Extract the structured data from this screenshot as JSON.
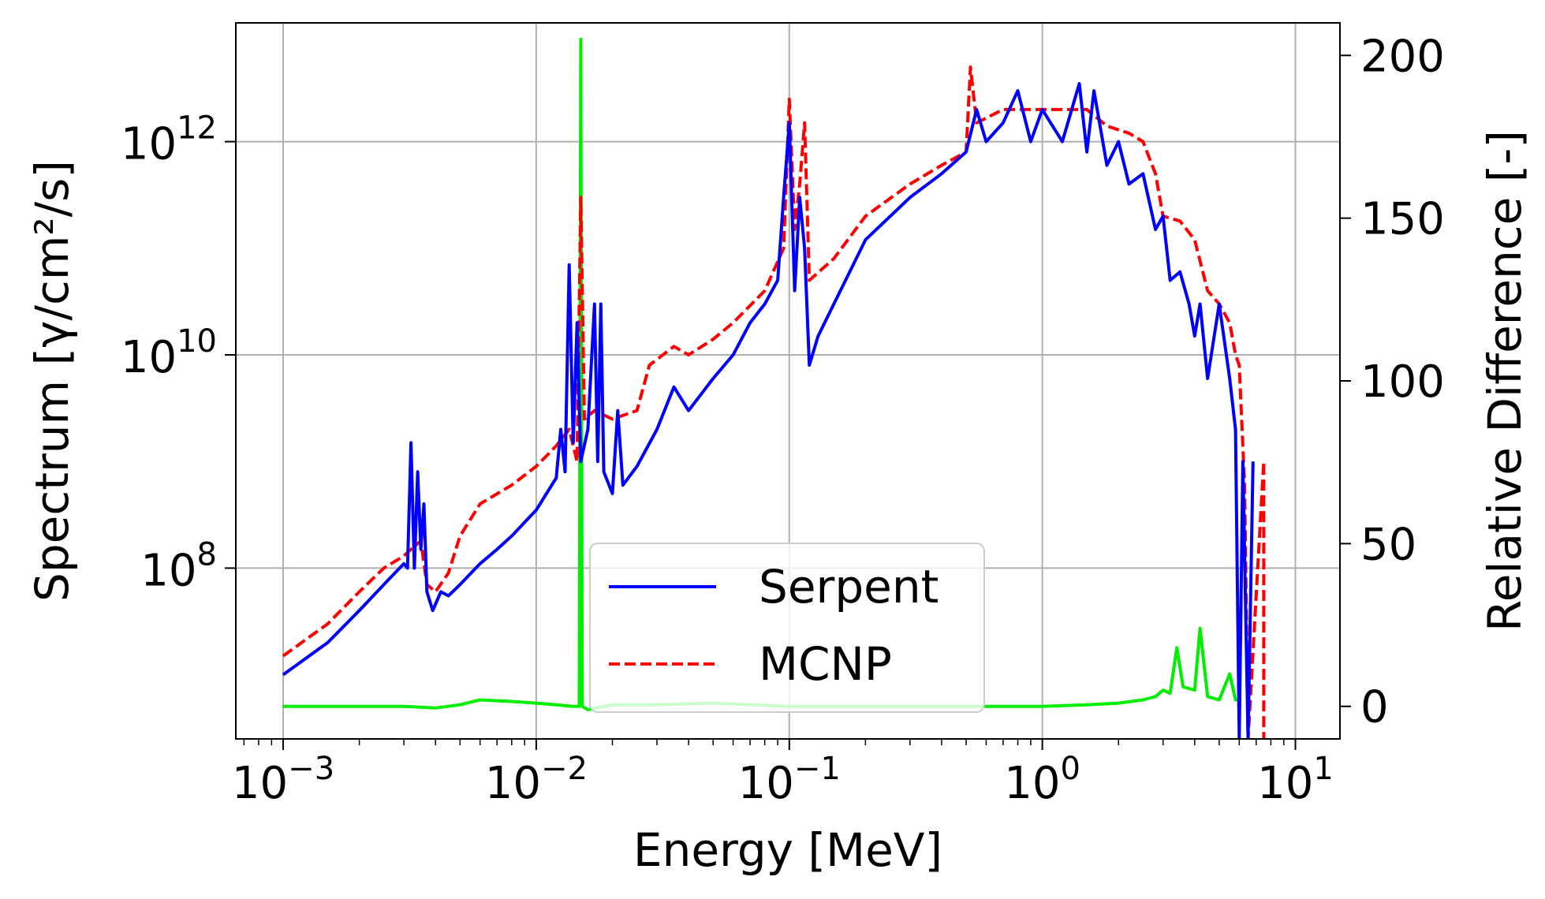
{
  "chart_data": {
    "type": "line",
    "xlabel": "Energy [MeV]",
    "ylabel_left": "Spectrum [γ/cm²/s]",
    "ylabel_right": "Relative Difference [-]",
    "x_scale": "log",
    "y_left_scale": "log",
    "y_right_scale": "linear",
    "xlim": [
      0.00065,
      15
    ],
    "ylim_left": [
      2500000.0,
      13000000000000.0
    ],
    "ylim_right": [
      -10,
      210
    ],
    "grid": true,
    "legend_position": "lower center",
    "x_ticks": [
      {
        "mantissa": "10",
        "exp": "−3",
        "value": 0.001
      },
      {
        "mantissa": "10",
        "exp": "−2",
        "value": 0.01
      },
      {
        "mantissa": "10",
        "exp": "−1",
        "value": 0.1
      },
      {
        "mantissa": "10",
        "exp": "0",
        "value": 1
      },
      {
        "mantissa": "10",
        "exp": "1",
        "value": 10
      }
    ],
    "y_left_ticks": [
      {
        "mantissa": "10",
        "exp": "8",
        "value": 100000000.0
      },
      {
        "mantissa": "10",
        "exp": "10",
        "value": 10000000000.0
      },
      {
        "mantissa": "10",
        "exp": "12",
        "value": 1000000000000.0
      }
    ],
    "y_right_ticks": [
      {
        "label": "0",
        "value": 0
      },
      {
        "label": "50",
        "value": 50
      },
      {
        "label": "100",
        "value": 100
      },
      {
        "label": "150",
        "value": 150
      },
      {
        "label": "200",
        "value": 200
      }
    ],
    "series": [
      {
        "name": "Serpent",
        "axis": "left",
        "color": "#0000ff",
        "style": "solid",
        "points": [
          [
            0.001,
            10000000.0
          ],
          [
            0.0015,
            20000000.0
          ],
          [
            0.002,
            40000000.0
          ],
          [
            0.0025,
            70000000.0
          ],
          [
            0.003,
            110000000.0
          ],
          [
            0.0031,
            100000000.0
          ],
          [
            0.0032,
            1500000000.0
          ],
          [
            0.0033,
            100000000.0
          ],
          [
            0.0034,
            800000000.0
          ],
          [
            0.0035,
            150000000.0
          ],
          [
            0.0036,
            400000000.0
          ],
          [
            0.0037,
            60000000.0
          ],
          [
            0.0039,
            40000000.0
          ],
          [
            0.0042,
            60000000.0
          ],
          [
            0.0045,
            55000000.0
          ],
          [
            0.005,
            70000000.0
          ],
          [
            0.006,
            110000000.0
          ],
          [
            0.007,
            150000000.0
          ],
          [
            0.008,
            200000000.0
          ],
          [
            0.01,
            350000000.0
          ],
          [
            0.012,
            700000000.0
          ],
          [
            0.0125,
            2000000000.0
          ],
          [
            0.013,
            800000000.0
          ],
          [
            0.0135,
            70000000000.0
          ],
          [
            0.014,
            1500000000.0
          ],
          [
            0.0145,
            20000000000.0
          ],
          [
            0.015,
            1000000000.0
          ],
          [
            0.016,
            2000000000.0
          ],
          [
            0.017,
            30000000000.0
          ],
          [
            0.0175,
            1000000000.0
          ],
          [
            0.018,
            30000000000.0
          ],
          [
            0.0185,
            800000000.0
          ],
          [
            0.02,
            500000000.0
          ],
          [
            0.021,
            3000000000.0
          ],
          [
            0.022,
            600000000.0
          ],
          [
            0.025,
            900000000.0
          ],
          [
            0.03,
            2000000000.0
          ],
          [
            0.035,
            5000000000.0
          ],
          [
            0.04,
            3000000000.0
          ],
          [
            0.05,
            6000000000.0
          ],
          [
            0.06,
            10000000000.0
          ],
          [
            0.07,
            20000000000.0
          ],
          [
            0.08,
            30000000000.0
          ],
          [
            0.09,
            50000000000.0
          ],
          [
            0.095,
            300000000000.0
          ],
          [
            0.1,
            1500000000000.0
          ],
          [
            0.105,
            40000000000.0
          ],
          [
            0.11,
            300000000000.0
          ],
          [
            0.115,
            100000000000.0
          ],
          [
            0.12,
            8000000000.0
          ],
          [
            0.13,
            15000000000.0
          ],
          [
            0.15,
            30000000000.0
          ],
          [
            0.2,
            120000000000.0
          ],
          [
            0.3,
            300000000000.0
          ],
          [
            0.4,
            500000000000.0
          ],
          [
            0.5,
            800000000000.0
          ],
          [
            0.55,
            2000000000000.0
          ],
          [
            0.6,
            1000000000000.0
          ],
          [
            0.7,
            1500000000000.0
          ],
          [
            0.8,
            3000000000000.0
          ],
          [
            0.9,
            1000000000000.0
          ],
          [
            1.0,
            2000000000000.0
          ],
          [
            1.2,
            1000000000000.0
          ],
          [
            1.4,
            3500000000000.0
          ],
          [
            1.5,
            800000000000.0
          ],
          [
            1.6,
            3000000000000.0
          ],
          [
            1.8,
            600000000000.0
          ],
          [
            2.0,
            1000000000000.0
          ],
          [
            2.2,
            400000000000.0
          ],
          [
            2.5,
            500000000000.0
          ],
          [
            2.8,
            150000000000.0
          ],
          [
            3.0,
            200000000000.0
          ],
          [
            3.2,
            50000000000.0
          ],
          [
            3.5,
            60000000000.0
          ],
          [
            3.8,
            30000000000.0
          ],
          [
            4.0,
            15000000000.0
          ],
          [
            4.2,
            30000000000.0
          ],
          [
            4.5,
            6000000000.0
          ],
          [
            5.0,
            30000000000.0
          ],
          [
            5.5,
            6000000000.0
          ],
          [
            5.8,
            2000000000.0
          ],
          [
            6.0,
            2500000.0
          ],
          [
            6.2,
            1000000000.0
          ],
          [
            6.5,
            2500000.0
          ],
          [
            6.8,
            1000000000.0
          ]
        ]
      },
      {
        "name": "MCNP",
        "axis": "left",
        "color": "#ff0000",
        "style": "dashed",
        "points": [
          [
            0.001,
            15000000.0
          ],
          [
            0.0015,
            30000000.0
          ],
          [
            0.002,
            60000000.0
          ],
          [
            0.0025,
            100000000.0
          ],
          [
            0.003,
            130000000.0
          ],
          [
            0.0033,
            160000000.0
          ],
          [
            0.0035,
            180000000.0
          ],
          [
            0.0037,
            70000000.0
          ],
          [
            0.004,
            60000000.0
          ],
          [
            0.0045,
            90000000.0
          ],
          [
            0.005,
            200000000.0
          ],
          [
            0.006,
            400000000.0
          ],
          [
            0.008,
            600000000.0
          ],
          [
            0.01,
            900000000.0
          ],
          [
            0.012,
            1400000000.0
          ],
          [
            0.0135,
            2000000000.0
          ],
          [
            0.0145,
            1000000000.0
          ],
          [
            0.015,
            300000000000.0
          ],
          [
            0.0155,
            2500000000.0
          ],
          [
            0.017,
            3000000000.0
          ],
          [
            0.02,
            2500000000.0
          ],
          [
            0.025,
            3000000000.0
          ],
          [
            0.028,
            8000000000.0
          ],
          [
            0.035,
            12000000000.0
          ],
          [
            0.04,
            10000000000.0
          ],
          [
            0.05,
            14000000000.0
          ],
          [
            0.06,
            20000000000.0
          ],
          [
            0.08,
            40000000000.0
          ],
          [
            0.095,
            100000000000.0
          ],
          [
            0.1,
            2500000000000.0
          ],
          [
            0.105,
            150000000000.0
          ],
          [
            0.11,
            400000000000.0
          ],
          [
            0.115,
            1500000000000.0
          ],
          [
            0.12,
            50000000000.0
          ],
          [
            0.15,
            80000000000.0
          ],
          [
            0.2,
            200000000000.0
          ],
          [
            0.3,
            400000000000.0
          ],
          [
            0.4,
            600000000000.0
          ],
          [
            0.5,
            800000000000.0
          ],
          [
            0.52,
            5000000000000.0
          ],
          [
            0.55,
            1500000000000.0
          ],
          [
            0.7,
            2000000000000.0
          ],
          [
            1.0,
            2000000000000.0
          ],
          [
            1.5,
            2000000000000.0
          ],
          [
            1.8,
            1400000000000.0
          ],
          [
            2.2,
            1200000000000.0
          ],
          [
            2.5,
            1000000000000.0
          ],
          [
            2.8,
            500000000000.0
          ],
          [
            3.0,
            200000000000.0
          ],
          [
            3.5,
            180000000000.0
          ],
          [
            4.0,
            120000000000.0
          ],
          [
            4.5,
            40000000000.0
          ],
          [
            5.0,
            30000000000.0
          ],
          [
            5.5,
            20000000000.0
          ],
          [
            5.8,
            10000000000.0
          ],
          [
            6.0,
            8000000000.0
          ],
          [
            6.3,
            600000000.0
          ],
          [
            6.5,
            2500000.0
          ],
          [
            7.5,
            1000000000.0
          ],
          [
            7.5,
            2500000.0
          ]
        ]
      },
      {
        "axis": "right",
        "color": "#00ee00",
        "style": "solid",
        "points": [
          [
            0.001,
            0
          ],
          [
            0.002,
            0
          ],
          [
            0.003,
            0
          ],
          [
            0.004,
            -0.5
          ],
          [
            0.005,
            0.5
          ],
          [
            0.006,
            2
          ],
          [
            0.008,
            1.5
          ],
          [
            0.01,
            1
          ],
          [
            0.012,
            0.5
          ],
          [
            0.014,
            0
          ],
          [
            0.0148,
            0
          ],
          [
            0.015,
            205
          ],
          [
            0.0152,
            0
          ],
          [
            0.016,
            -1
          ],
          [
            0.02,
            0.5
          ],
          [
            0.03,
            0.5
          ],
          [
            0.05,
            1
          ],
          [
            0.1,
            0
          ],
          [
            0.2,
            0
          ],
          [
            0.5,
            0
          ],
          [
            1.0,
            0
          ],
          [
            1.5,
            0.5
          ],
          [
            2.0,
            1
          ],
          [
            2.5,
            2
          ],
          [
            2.8,
            3
          ],
          [
            3.0,
            5
          ],
          [
            3.2,
            4
          ],
          [
            3.4,
            18
          ],
          [
            3.6,
            6
          ],
          [
            4.0,
            5
          ],
          [
            4.2,
            24
          ],
          [
            4.5,
            3
          ],
          [
            5.0,
            2
          ],
          [
            5.5,
            10
          ],
          [
            5.8,
            2
          ],
          [
            6.0,
            2
          ]
        ]
      }
    ]
  }
}
